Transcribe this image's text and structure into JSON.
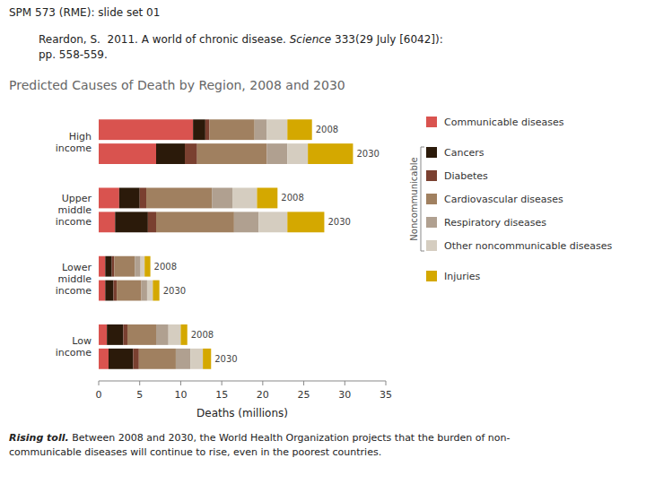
{
  "chart_data": {
    "type": "bar",
    "orientation": "horizontal",
    "stacked": true,
    "header": "SPM 573 (RME): slide set 01",
    "reference": [
      [
        {
          "text": "Reardon, S.  2011. A world of chronic disease. "
        },
        {
          "text": "Science",
          "italic": true
        },
        {
          "text": " 333(29 July [6042]):"
        }
      ],
      [
        {
          "text": "pp. 558-559."
        }
      ]
    ],
    "title": "Predicted Causes of Death by Region, 2008 and 2030",
    "xlabel": "Deaths (millions)",
    "categories": [
      "High\nincome",
      "Upper\nmiddle\nincome",
      "Lower\nmiddle\nincome",
      "Low\nincome"
    ],
    "bar_labels": [
      "2008",
      "2030"
    ],
    "series": [
      {
        "name": "Communicable diseases",
        "color": "#d9534f",
        "values": [
          [
            11.5,
            7.0
          ],
          [
            2.5,
            2.0
          ],
          [
            0.8,
            0.8
          ],
          [
            1.0,
            1.2
          ]
        ]
      },
      {
        "name": "Cancers",
        "color": "#2b1a0a",
        "values": [
          [
            1.5,
            3.5
          ],
          [
            2.5,
            4.0
          ],
          [
            0.8,
            1.0
          ],
          [
            2.0,
            3.0
          ]
        ]
      },
      {
        "name": "Diabetes",
        "color": "#7a4030",
        "values": [
          [
            0.5,
            1.5
          ],
          [
            0.8,
            1.0
          ],
          [
            0.3,
            0.4
          ],
          [
            0.5,
            0.7
          ]
        ]
      },
      {
        "name": "Cardiovascular diseases",
        "color": "#a08060",
        "values": [
          [
            5.5,
            8.5
          ],
          [
            8.0,
            9.5
          ],
          [
            2.5,
            3.0
          ],
          [
            3.5,
            4.5
          ]
        ]
      },
      {
        "name": "Respiratory diseases",
        "color": "#b0a090",
        "values": [
          [
            1.5,
            2.5
          ],
          [
            2.5,
            3.0
          ],
          [
            0.7,
            0.7
          ],
          [
            1.5,
            1.8
          ]
        ]
      },
      {
        "name": "Other noncommunicable diseases",
        "color": "#d5cdc0",
        "values": [
          [
            2.5,
            2.5
          ],
          [
            3.0,
            3.5
          ],
          [
            0.5,
            0.7
          ],
          [
            1.5,
            1.5
          ]
        ]
      },
      {
        "name": "Injuries",
        "color": "#d4a800",
        "values": [
          [
            3.0,
            5.5
          ],
          [
            2.5,
            4.5
          ],
          [
            0.7,
            0.8
          ],
          [
            0.8,
            1.0
          ]
        ]
      }
    ],
    "legend_groups": [
      {
        "name": "Noncommunicable",
        "members": [
          "Cancers",
          "Diabetes",
          "Cardiovascular diseases",
          "Respiratory diseases",
          "Other noncommunicable diseases"
        ]
      }
    ],
    "legend": "right",
    "grid": false,
    "xlim": [
      0,
      35
    ],
    "xticks": [
      0,
      5,
      10,
      15,
      20,
      25,
      30,
      35
    ],
    "caption_bold": "Rising toll.",
    "caption": " Between 2008 and 2030, the World Health Organization projects that the burden of non-\ncommunicable diseases will continue to rise, even in the poorest countries."
  }
}
